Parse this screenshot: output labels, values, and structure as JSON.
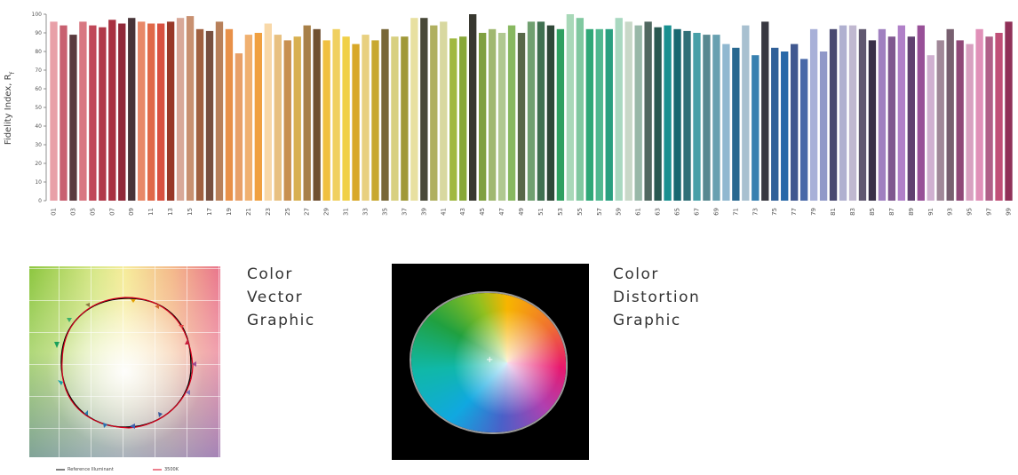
{
  "chart_data": {
    "type": "bar",
    "y_label": "Fidelity Index, R",
    "y_label_subscript": "f",
    "categories": [
      "01",
      null,
      "03",
      null,
      "05",
      null,
      "07",
      null,
      "09",
      null,
      "11",
      null,
      "13",
      null,
      "15",
      null,
      "17",
      null,
      "19",
      null,
      "21",
      null,
      "23",
      null,
      "25",
      null,
      "27",
      null,
      "29",
      null,
      "31",
      null,
      "33",
      null,
      "35",
      null,
      "37",
      null,
      "39",
      null,
      "41",
      null,
      "43",
      null,
      "45",
      null,
      "47",
      null,
      "49",
      null,
      "51",
      null,
      "53",
      null,
      "55",
      null,
      "57",
      null,
      "59",
      null,
      "61",
      null,
      "63",
      null,
      "65",
      null,
      "67",
      null,
      "69",
      null,
      "71",
      null,
      "73",
      null,
      "75",
      null,
      "77",
      null,
      "79",
      null,
      "81",
      null,
      "83",
      null,
      "85",
      null,
      "87",
      null,
      "89",
      null,
      "91",
      null,
      "93",
      null,
      "95",
      null,
      "97",
      null,
      "99"
    ],
    "values": [
      96,
      94,
      89,
      96,
      94,
      93,
      97,
      95,
      98,
      96,
      95,
      95,
      96,
      98,
      99,
      92,
      91,
      96,
      92,
      79,
      89,
      90,
      95,
      89,
      86,
      88,
      94,
      92,
      86,
      92,
      88,
      84,
      89,
      86,
      92,
      88,
      88,
      98,
      98,
      94,
      96,
      87,
      88,
      100,
      90,
      92,
      90,
      94,
      90,
      96,
      96,
      94,
      92,
      100,
      98,
      92,
      92,
      92,
      98,
      96,
      94,
      96,
      93,
      94,
      92,
      91,
      90,
      89,
      89,
      84,
      82,
      94,
      78,
      96,
      82,
      80,
      84,
      76,
      92,
      80,
      92,
      94,
      94,
      92,
      86,
      92,
      88,
      94,
      88,
      94,
      78,
      86,
      92,
      86,
      84,
      92,
      88,
      90,
      96
    ],
    "colors": [
      "#e8a0a8",
      "#c86070",
      "#5a3a3e",
      "#d87882",
      "#c04858",
      "#b03848",
      "#a83040",
      "#902838",
      "#483438",
      "#e88868",
      "#e06848",
      "#d85040",
      "#983828",
      "#d8a898",
      "#c89070",
      "#a06040",
      "#785040",
      "#b8805a",
      "#e89048",
      "#e8a068",
      "#f0b070",
      "#f0a040",
      "#f8d8a8",
      "#e8c080",
      "#c89050",
      "#d8b050",
      "#a88048",
      "#705030",
      "#f0c040",
      "#f0d060",
      "#f0d048",
      "#d8a828",
      "#e8d080",
      "#c8a830",
      "#786838",
      "#d8d080",
      "#a09838",
      "#e8e0a0",
      "#484838",
      "#b0b060",
      "#d8d8a0",
      "#a0b840",
      "#88a838",
      "#383830",
      "#80a040",
      "#a0b870",
      "#b0c890",
      "#88b860",
      "#586848",
      "#70a070",
      "#407050",
      "#304838",
      "#30a060",
      "#a8d8b8",
      "#80c8a0",
      "#30a878",
      "#50b890",
      "#28a080",
      "#a8d8c0",
      "#c8d8c8",
      "#98b8a8",
      "#506860",
      "#285850",
      "#189090",
      "#186870",
      "#307078",
      "#48a0a8",
      "#588890",
      "#68a0b0",
      "#90b8d0",
      "#286890",
      "#a8c0d0",
      "#3880b0",
      "#383840",
      "#306098",
      "#2868a8",
      "#405890",
      "#4868a8",
      "#a8b0d8",
      "#9098c8",
      "#484870",
      "#b0b0d0",
      "#c0b8d0",
      "#605870",
      "#383048",
      "#a080c0",
      "#805890",
      "#b080c8",
      "#604070",
      "#985098",
      "#d0b0d0",
      "#a08898",
      "#786070",
      "#904878",
      "#d8a0c0",
      "#e090b8",
      "#b06088",
      "#c05078",
      "#903058"
    ],
    "ylim": [
      0,
      100
    ],
    "yticks": [
      0,
      10,
      20,
      30,
      40,
      50,
      60,
      70,
      80,
      90,
      100
    ],
    "grid": false
  },
  "panels": [
    {
      "label_lines": [
        "Color",
        "Vector",
        "Graphic"
      ],
      "legend": [
        {
          "name": "Reference Illuminant",
          "color": "#000000"
        },
        {
          "name": "3500K",
          "color": "#d8001c"
        }
      ]
    },
    {
      "label_lines": [
        "Color",
        "Distortion",
        "Graphic"
      ]
    }
  ]
}
